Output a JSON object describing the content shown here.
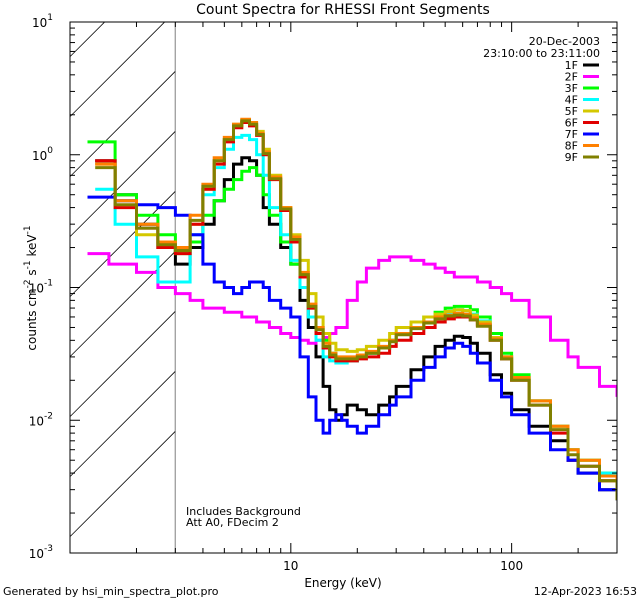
{
  "chart_data": {
    "type": "line",
    "title": "Count Spectra for RHESSI Front Segments",
    "xlabel": "Energy (keV)",
    "ylabel": "counts cm",
    "ylabel_sup1": "-2",
    "ylabel_mid": " s",
    "ylabel_sup2": "-1",
    "ylabel_end": " keV",
    "ylabel_sup3": "-1",
    "x_scale": "log",
    "y_scale": "log",
    "xlim": [
      1,
      300
    ],
    "ylim": [
      0.001,
      10
    ],
    "x_major_ticks": [
      {
        "value": 1,
        "label": ""
      },
      {
        "value": 10,
        "label": "10"
      },
      {
        "value": 100,
        "label": "100"
      }
    ],
    "y_major_ticks": [
      {
        "value": 0.001,
        "base": "10",
        "exp": "-3"
      },
      {
        "value": 0.01,
        "base": "10",
        "exp": "-2"
      },
      {
        "value": 0.1,
        "base": "10",
        "exp": "-1"
      },
      {
        "value": 1,
        "base": "10",
        "exp": "0"
      },
      {
        "value": 10,
        "base": "10",
        "exp": "1"
      }
    ],
    "excluded_region_keV": [
      1,
      3
    ],
    "date": "20-Dec-2003",
    "time_range": "23:10:00 to 23:11:00",
    "annotation_1": "Includes Background",
    "annotation_2": "Att A0, FDecim 2",
    "footer_left": "Generated by hsi_min_spectra_plot.pro",
    "footer_right": "12-Apr-2023 16:53",
    "series": [
      {
        "name": "1F",
        "color": "#000000",
        "x": [
          1.3,
          1.6,
          2.0,
          2.5,
          3.0,
          3.5,
          4.0,
          4.5,
          5.0,
          5.5,
          6.0,
          6.5,
          7.0,
          7.5,
          8.0,
          9.0,
          10,
          11,
          12,
          13,
          14,
          15,
          16,
          17,
          18,
          20,
          22,
          25,
          28,
          30,
          35,
          40,
          45,
          50,
          55,
          60,
          65,
          70,
          80,
          90,
          100,
          120,
          150,
          180,
          200,
          250,
          300
        ],
        "y": [
          0.9,
          0.5,
          0.3,
          0.2,
          0.15,
          0.2,
          0.3,
          0.45,
          0.65,
          0.85,
          0.95,
          0.9,
          0.7,
          0.4,
          0.3,
          0.2,
          0.15,
          0.08,
          0.05,
          0.03,
          0.018,
          0.012,
          0.01,
          0.011,
          0.013,
          0.012,
          0.011,
          0.013,
          0.015,
          0.018,
          0.024,
          0.03,
          0.036,
          0.04,
          0.043,
          0.042,
          0.038,
          0.032,
          0.022,
          0.016,
          0.012,
          0.009,
          0.007,
          0.005,
          0.004,
          0.003,
          0.0025
        ]
      },
      {
        "name": "2F",
        "color": "#ff00ff",
        "x": [
          1.2,
          1.5,
          2.0,
          2.5,
          3.0,
          3.5,
          4.0,
          5.0,
          6.0,
          7.0,
          8.0,
          9.0,
          10,
          11,
          12,
          13,
          14,
          15,
          16,
          18,
          20,
          22,
          25,
          28,
          30,
          35,
          40,
          45,
          50,
          55,
          60,
          70,
          80,
          90,
          100,
          120,
          150,
          180,
          200,
          250,
          300
        ],
        "y": [
          0.18,
          0.15,
          0.13,
          0.1,
          0.09,
          0.08,
          0.07,
          0.065,
          0.06,
          0.055,
          0.05,
          0.045,
          0.042,
          0.04,
          0.038,
          0.04,
          0.042,
          0.045,
          0.05,
          0.08,
          0.11,
          0.14,
          0.16,
          0.17,
          0.17,
          0.16,
          0.15,
          0.14,
          0.13,
          0.12,
          0.12,
          0.11,
          0.1,
          0.09,
          0.08,
          0.06,
          0.04,
          0.03,
          0.025,
          0.018,
          0.015
        ]
      },
      {
        "name": "3F",
        "color": "#00ff00",
        "x": [
          1.2,
          1.6,
          2.0,
          2.5,
          3.0,
          3.5,
          4.0,
          4.5,
          5.0,
          5.5,
          6.0,
          6.5,
          7.0,
          7.5,
          8.0,
          9.0,
          10,
          11,
          12,
          13,
          14,
          15,
          16,
          18,
          20,
          22,
          25,
          28,
          30,
          35,
          40,
          45,
          50,
          55,
          60,
          65,
          70,
          80,
          90,
          100,
          120,
          150,
          180,
          200,
          250,
          300
        ],
        "y": [
          1.25,
          0.5,
          0.35,
          0.25,
          0.18,
          0.22,
          0.35,
          0.45,
          0.55,
          0.65,
          0.75,
          0.8,
          0.7,
          0.5,
          0.35,
          0.22,
          0.15,
          0.1,
          0.07,
          0.05,
          0.04,
          0.032,
          0.028,
          0.028,
          0.03,
          0.032,
          0.035,
          0.04,
          0.045,
          0.055,
          0.06,
          0.065,
          0.07,
          0.072,
          0.072,
          0.068,
          0.06,
          0.045,
          0.032,
          0.022,
          0.014,
          0.009,
          0.006,
          0.005,
          0.004,
          0.003
        ]
      },
      {
        "name": "4F",
        "color": "#00ffff",
        "x": [
          1.3,
          1.6,
          2.0,
          2.5,
          3.0,
          3.5,
          4.0,
          4.5,
          5.0,
          5.5,
          6.0,
          6.5,
          7.0,
          7.5,
          8.0,
          9.0,
          10,
          11,
          12,
          13,
          14,
          15,
          16,
          18,
          20,
          22,
          25,
          28,
          30,
          35,
          40,
          45,
          50,
          55,
          60,
          65,
          70,
          80,
          90,
          100,
          120,
          150,
          180,
          200,
          250,
          300
        ],
        "y": [
          0.55,
          0.3,
          0.17,
          0.11,
          0.11,
          0.25,
          0.5,
          0.8,
          1.1,
          1.35,
          1.4,
          1.3,
          1.0,
          0.7,
          0.4,
          0.25,
          0.16,
          0.1,
          0.06,
          0.04,
          0.03,
          0.028,
          0.027,
          0.028,
          0.03,
          0.032,
          0.035,
          0.04,
          0.045,
          0.05,
          0.055,
          0.06,
          0.065,
          0.068,
          0.067,
          0.063,
          0.056,
          0.042,
          0.03,
          0.021,
          0.014,
          0.009,
          0.006,
          0.005,
          0.004,
          0.003
        ]
      },
      {
        "name": "5F",
        "color": "#d4c800",
        "x": [
          1.3,
          1.6,
          2.0,
          2.5,
          3.0,
          3.5,
          4.0,
          4.5,
          5.0,
          5.5,
          6.0,
          6.5,
          7.0,
          7.5,
          8.0,
          9.0,
          10,
          11,
          12,
          13,
          14,
          15,
          16,
          18,
          20,
          22,
          25,
          28,
          30,
          35,
          40,
          45,
          50,
          55,
          60,
          65,
          70,
          80,
          90,
          100,
          120,
          150,
          180,
          200,
          250,
          300
        ],
        "y": [
          0.85,
          0.45,
          0.25,
          0.2,
          0.2,
          0.3,
          0.55,
          0.9,
          1.3,
          1.7,
          1.8,
          1.7,
          1.5,
          1.1,
          0.7,
          0.4,
          0.25,
          0.16,
          0.09,
          0.06,
          0.045,
          0.038,
          0.034,
          0.033,
          0.034,
          0.036,
          0.04,
          0.045,
          0.05,
          0.055,
          0.06,
          0.063,
          0.066,
          0.068,
          0.067,
          0.062,
          0.055,
          0.042,
          0.03,
          0.021,
          0.014,
          0.009,
          0.006,
          0.005,
          0.0035,
          0.003
        ]
      },
      {
        "name": "6F",
        "color": "#e00000",
        "x": [
          1.3,
          1.6,
          2.0,
          2.5,
          3.0,
          3.5,
          4.0,
          4.5,
          5.0,
          5.5,
          6.0,
          6.5,
          7.0,
          7.5,
          8.0,
          9.0,
          10,
          11,
          12,
          13,
          14,
          15,
          16,
          18,
          20,
          22,
          25,
          28,
          30,
          35,
          40,
          45,
          50,
          55,
          60,
          65,
          70,
          80,
          90,
          100,
          120,
          150,
          180,
          200,
          250,
          300
        ],
        "y": [
          0.9,
          0.4,
          0.28,
          0.2,
          0.18,
          0.3,
          0.55,
          0.85,
          1.25,
          1.6,
          1.75,
          1.65,
          1.4,
          1.0,
          0.65,
          0.38,
          0.22,
          0.12,
          0.07,
          0.045,
          0.035,
          0.03,
          0.028,
          0.028,
          0.029,
          0.03,
          0.032,
          0.036,
          0.04,
          0.045,
          0.05,
          0.055,
          0.058,
          0.06,
          0.06,
          0.057,
          0.052,
          0.04,
          0.029,
          0.02,
          0.013,
          0.008,
          0.005,
          0.0045,
          0.0035,
          0.0028
        ]
      },
      {
        "name": "7F",
        "color": "#0000ff",
        "x": [
          1.2,
          1.6,
          2.0,
          2.5,
          3.0,
          3.5,
          4.0,
          4.5,
          5.0,
          5.5,
          6.0,
          6.5,
          7.0,
          7.5,
          8.0,
          9.0,
          10,
          11,
          12,
          13,
          14,
          15,
          16,
          17,
          18,
          20,
          22,
          25,
          28,
          30,
          35,
          40,
          45,
          50,
          55,
          60,
          65,
          70,
          80,
          90,
          100,
          120,
          150,
          180,
          200,
          250,
          300
        ],
        "y": [
          0.48,
          0.45,
          0.42,
          0.4,
          0.35,
          0.25,
          0.15,
          0.11,
          0.1,
          0.09,
          0.1,
          0.11,
          0.11,
          0.1,
          0.08,
          0.07,
          0.06,
          0.03,
          0.015,
          0.01,
          0.008,
          0.01,
          0.011,
          0.01,
          0.009,
          0.008,
          0.009,
          0.011,
          0.013,
          0.015,
          0.02,
          0.025,
          0.03,
          0.035,
          0.038,
          0.036,
          0.032,
          0.027,
          0.02,
          0.015,
          0.011,
          0.008,
          0.006,
          0.005,
          0.004,
          0.003,
          0.0025
        ]
      },
      {
        "name": "8F",
        "color": "#ff8000",
        "x": [
          1.3,
          1.6,
          2.0,
          2.5,
          3.0,
          3.5,
          4.0,
          4.5,
          5.0,
          5.5,
          6.0,
          6.5,
          7.0,
          7.5,
          8.0,
          9.0,
          10,
          11,
          12,
          13,
          14,
          15,
          16,
          18,
          20,
          22,
          25,
          28,
          30,
          35,
          40,
          45,
          50,
          55,
          60,
          65,
          70,
          80,
          90,
          100,
          120,
          150,
          180,
          200,
          250,
          300
        ],
        "y": [
          0.85,
          0.45,
          0.3,
          0.22,
          0.2,
          0.35,
          0.6,
          0.95,
          1.35,
          1.7,
          1.85,
          1.75,
          1.45,
          1.05,
          0.68,
          0.4,
          0.24,
          0.13,
          0.075,
          0.05,
          0.038,
          0.032,
          0.03,
          0.03,
          0.031,
          0.033,
          0.036,
          0.04,
          0.045,
          0.05,
          0.055,
          0.06,
          0.062,
          0.064,
          0.063,
          0.059,
          0.053,
          0.041,
          0.03,
          0.021,
          0.014,
          0.009,
          0.006,
          0.005,
          0.0038,
          0.0028
        ]
      },
      {
        "name": "9F",
        "color": "#808000",
        "x": [
          1.3,
          1.6,
          2.0,
          2.5,
          3.0,
          3.5,
          4.0,
          4.5,
          5.0,
          5.5,
          6.0,
          6.5,
          7.0,
          7.5,
          8.0,
          9.0,
          10,
          11,
          12,
          13,
          14,
          15,
          16,
          18,
          20,
          22,
          25,
          28,
          30,
          35,
          40,
          45,
          50,
          55,
          60,
          65,
          70,
          80,
          90,
          100,
          120,
          150,
          180,
          200,
          250,
          300
        ],
        "y": [
          0.8,
          0.42,
          0.28,
          0.21,
          0.19,
          0.32,
          0.58,
          0.9,
          1.3,
          1.65,
          1.8,
          1.7,
          1.42,
          1.02,
          0.66,
          0.39,
          0.23,
          0.125,
          0.072,
          0.048,
          0.036,
          0.031,
          0.029,
          0.029,
          0.03,
          0.032,
          0.035,
          0.039,
          0.044,
          0.049,
          0.054,
          0.058,
          0.061,
          0.062,
          0.061,
          0.057,
          0.051,
          0.04,
          0.029,
          0.02,
          0.013,
          0.0085,
          0.0055,
          0.0045,
          0.0035,
          0.0025
        ]
      }
    ]
  }
}
